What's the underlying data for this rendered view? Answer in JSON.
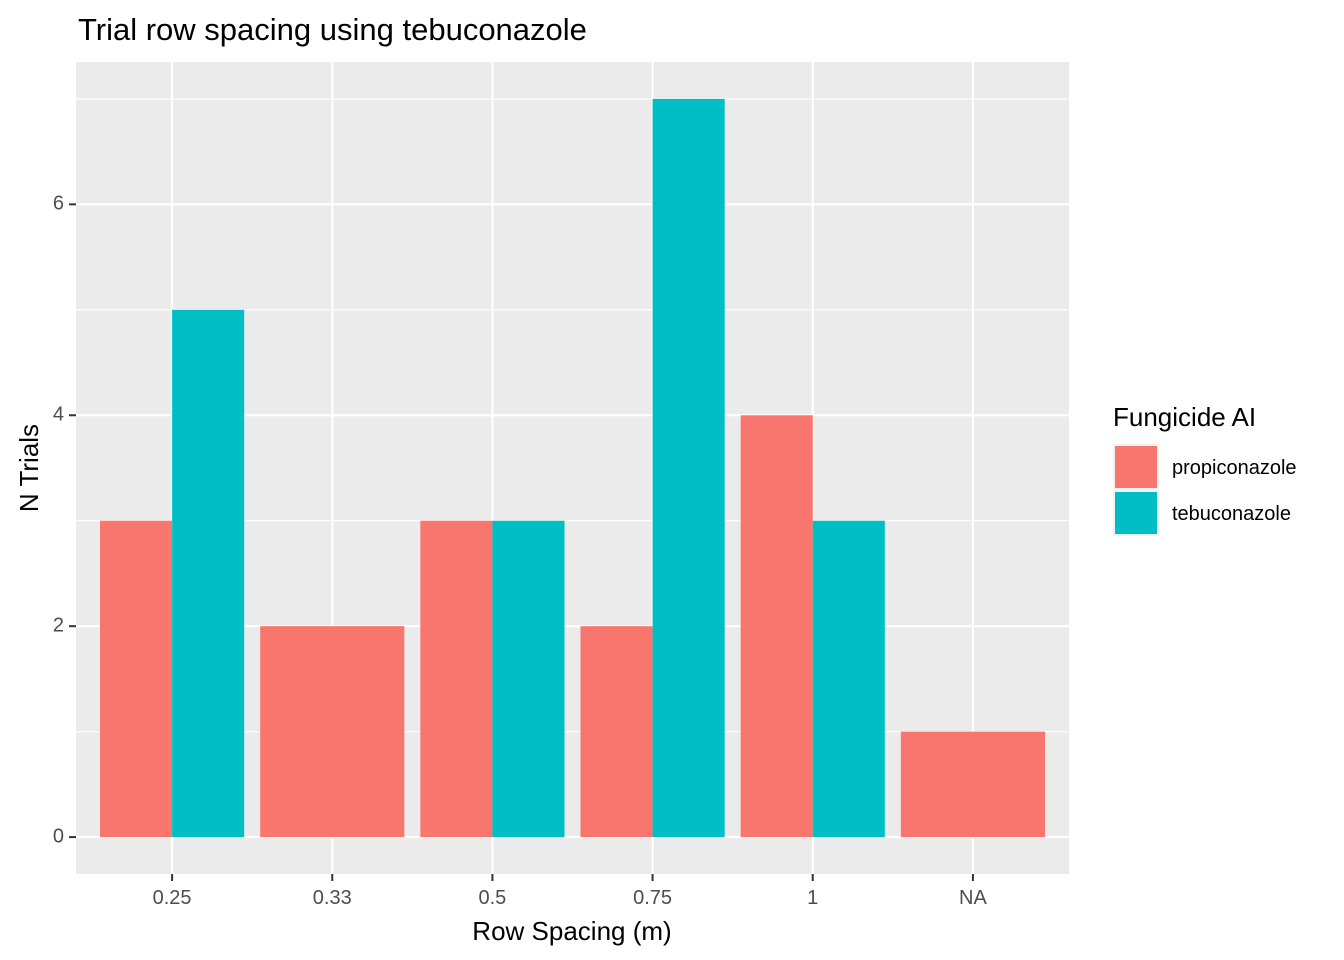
{
  "chart_data": {
    "type": "bar",
    "title": "Trial row spacing using tebuconazole",
    "xlabel": "Row Spacing (m)",
    "ylabel": "N Trials",
    "categories": [
      "0.25",
      "0.33",
      "0.5",
      "0.75",
      "1",
      "NA"
    ],
    "series": [
      {
        "name": "propiconazole",
        "color": "#F8766D",
        "values": [
          3,
          2,
          3,
          2,
          4,
          1
        ]
      },
      {
        "name": "tebuconazole",
        "color": "#00BFC4",
        "values": [
          5,
          null,
          3,
          7,
          3,
          null
        ]
      }
    ],
    "ylim": [
      -0.35,
      7.35
    ],
    "yticks": [
      "0",
      "2",
      "4",
      "6"
    ],
    "grid": true,
    "legend": {
      "title": "Fungicide AI",
      "placement": "right"
    },
    "panel_background": "#EBEBEB",
    "grid_color": "#FFFFFF"
  }
}
